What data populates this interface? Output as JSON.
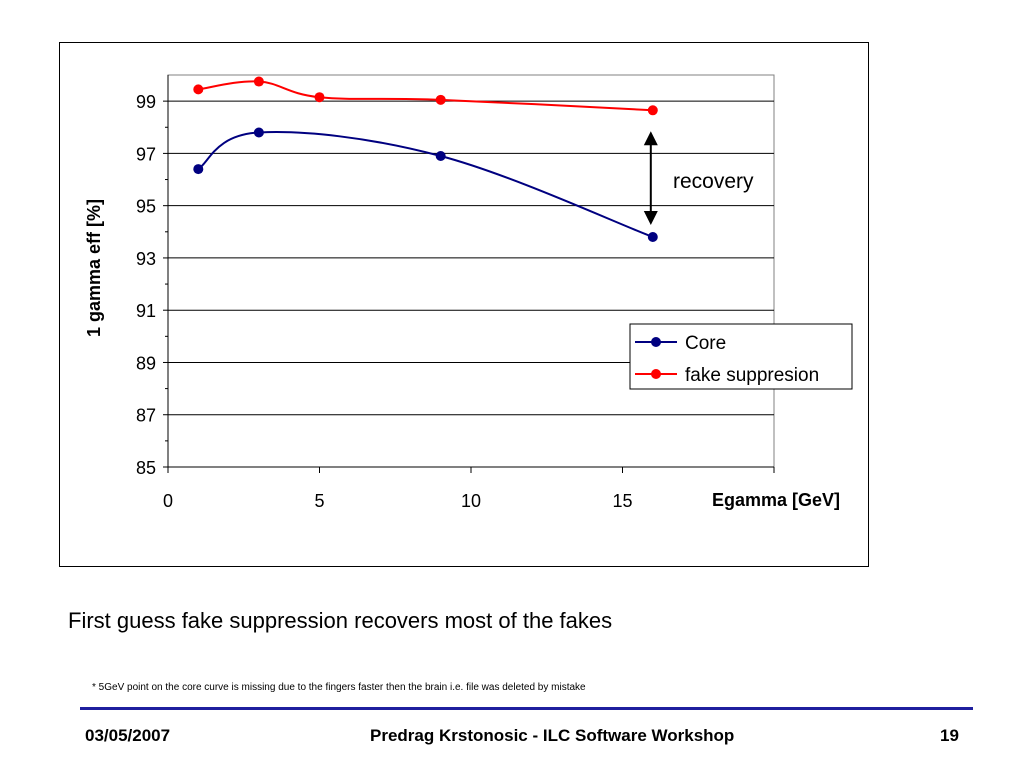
{
  "chart_data": {
    "type": "line",
    "title": "",
    "xlabel": "Egamma [GeV]",
    "ylabel": "1 gamma eff [%]",
    "xlim": [
      0,
      20
    ],
    "ylim": [
      85,
      100
    ],
    "x_ticks": [
      "0",
      "5",
      "10",
      "15"
    ],
    "y_ticks": [
      "85",
      "87",
      "89",
      "91",
      "93",
      "95",
      "97",
      "99"
    ],
    "grid": "horizontal",
    "legend_position": "right",
    "series": [
      {
        "name": "Core",
        "color": "#000080",
        "x": [
          1,
          3,
          9,
          16
        ],
        "y": [
          96.4,
          97.8,
          96.9,
          93.8
        ]
      },
      {
        "name": "fake suppresion",
        "color": "#ff0000",
        "x": [
          1,
          3,
          5,
          9,
          16
        ],
        "y": [
          99.45,
          99.75,
          99.15,
          99.05,
          98.65
        ]
      }
    ],
    "annotation": "recovery"
  },
  "caption": "First guess fake suppression recovers most of the fakes",
  "footnote": "* 5GeV point on the core curve is missing due to the fingers faster then the brain i.e. file  was deleted by mistake",
  "footer": {
    "date": "03/05/2007",
    "center": "Predrag Krstonosic - ILC Software Workshop",
    "page": "19"
  }
}
